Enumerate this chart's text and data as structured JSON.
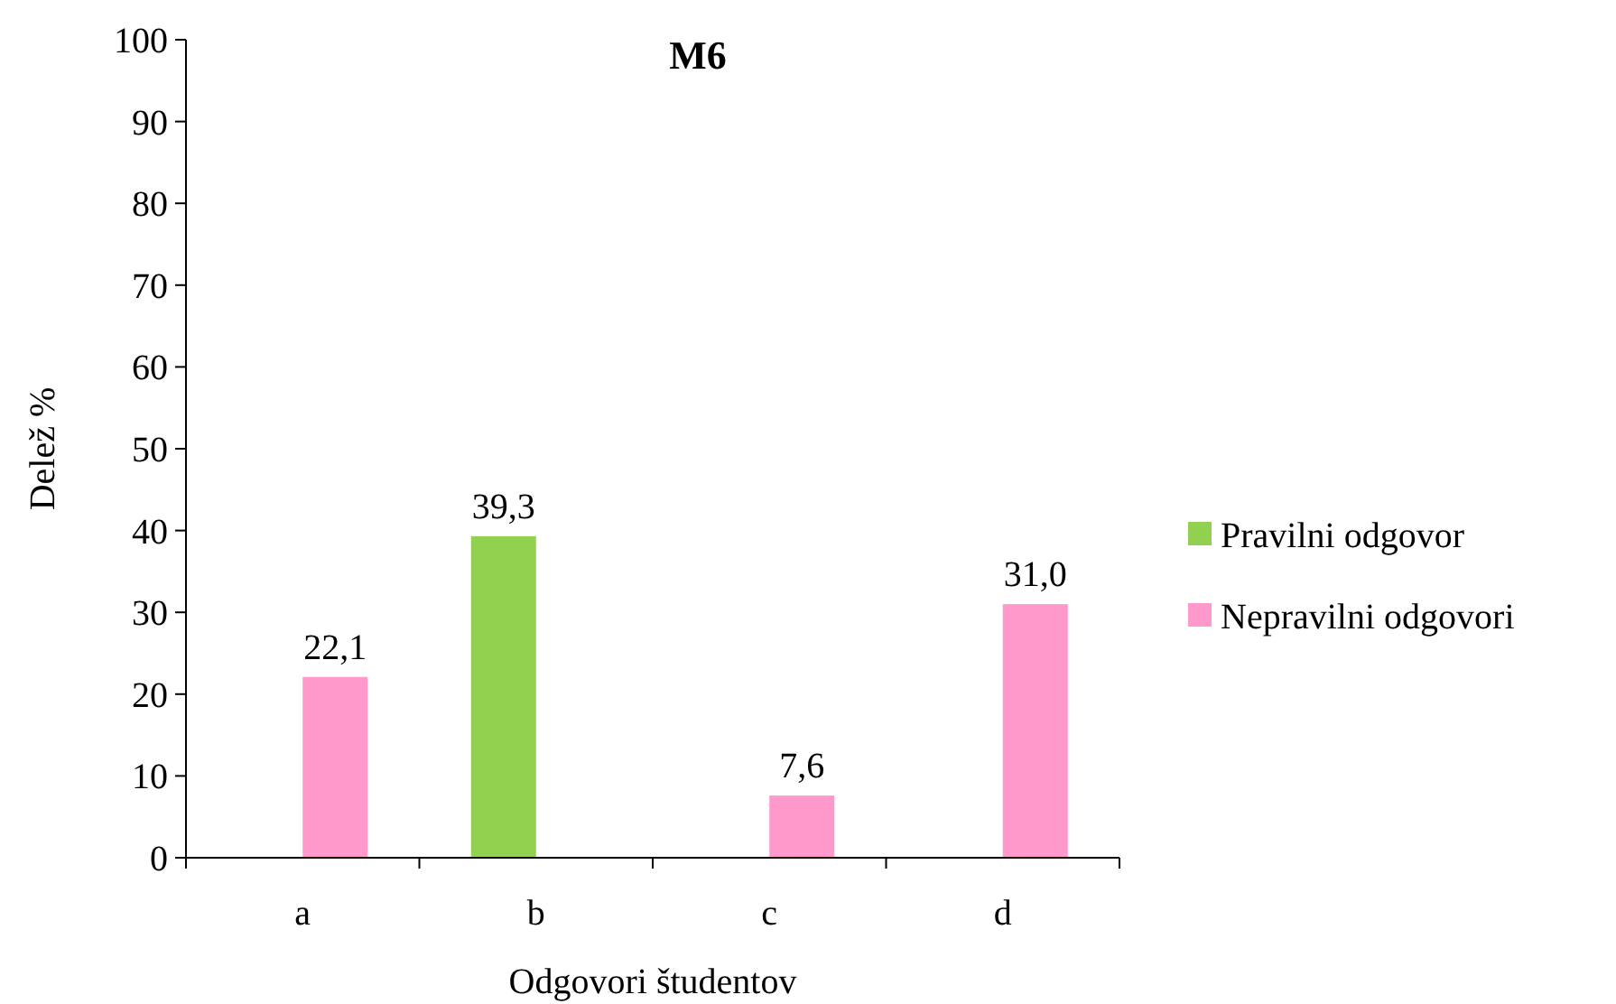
{
  "chart_data": {
    "type": "bar",
    "title": "M6",
    "xlabel": "Odgovori študentov",
    "ylabel": "Delež %",
    "categories": [
      "a",
      "b",
      "c",
      "d"
    ],
    "series": [
      {
        "name": "Pravilni odgovor",
        "color": "#92d050",
        "values": [
          null,
          39.3,
          null,
          null
        ],
        "value_labels": [
          null,
          "39,3",
          null,
          null
        ]
      },
      {
        "name": "Nepravilni odgovori",
        "color": "#ff99cc",
        "values": [
          22.1,
          null,
          7.6,
          31.0
        ],
        "value_labels": [
          "22,1",
          null,
          "7,6",
          "31,0"
        ]
      }
    ],
    "ylim": [
      0,
      100
    ],
    "yticks": [
      0,
      10,
      20,
      30,
      40,
      50,
      60,
      70,
      80,
      90,
      100
    ],
    "grid": false,
    "legend": "right"
  }
}
